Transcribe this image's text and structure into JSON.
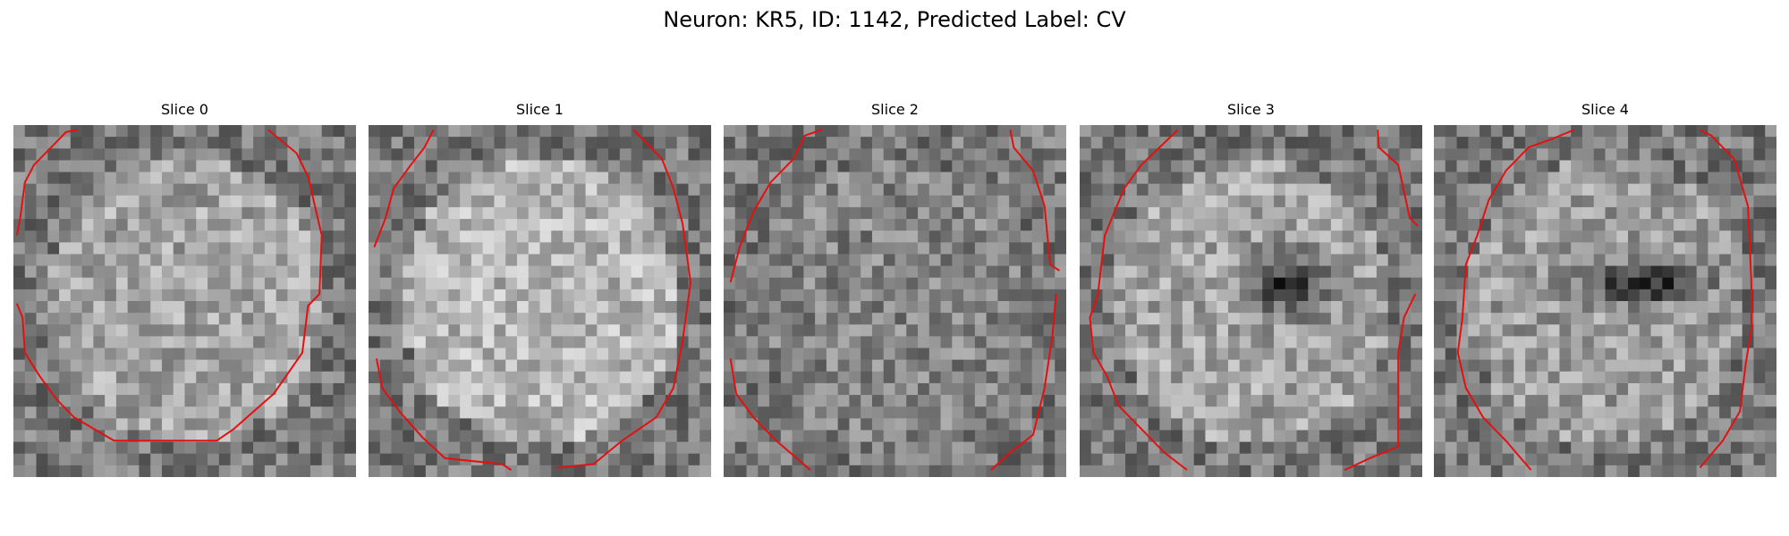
{
  "title": "Neuron: KR5, ID: 1142, Predicted Label: CV",
  "panels": [
    {
      "title": "Slice 0"
    },
    {
      "title": "Slice 1"
    },
    {
      "title": "Slice 2"
    },
    {
      "title": "Slice 3"
    },
    {
      "title": "Slice 4"
    }
  ]
}
